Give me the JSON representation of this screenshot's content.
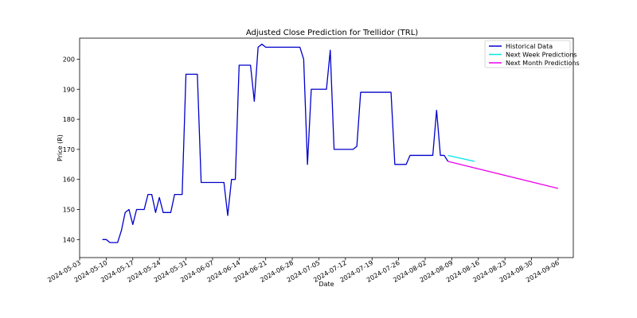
{
  "chart_data": {
    "type": "line",
    "title": "Adjusted Close Prediction for Trellidor (TRL)",
    "xlabel": "Date",
    "ylabel": "Price (R)",
    "xlim": [
      "2024-05-03",
      "2024-09-10"
    ],
    "ylim": [
      134,
      207
    ],
    "x_ticks": [
      "2024-05-03",
      "2024-05-10",
      "2024-05-17",
      "2024-05-24",
      "2024-05-31",
      "2024-06-07",
      "2024-06-14",
      "2024-06-21",
      "2024-06-28",
      "2024-07-05",
      "2024-07-12",
      "2024-07-19",
      "2024-07-26",
      "2024-08-02",
      "2024-08-09",
      "2024-08-16",
      "2024-08-23",
      "2024-08-30",
      "2024-09-06"
    ],
    "y_ticks": [
      140,
      150,
      160,
      170,
      180,
      190,
      200
    ],
    "grid": false,
    "legend": "top-right",
    "series": [
      {
        "name": "Historical Data",
        "color": "#0000cc",
        "points": [
          [
            "2024-05-09",
            140
          ],
          [
            "2024-05-10",
            140
          ],
          [
            "2024-05-11",
            139
          ],
          [
            "2024-05-12",
            139
          ],
          [
            "2024-05-13",
            139
          ],
          [
            "2024-05-14",
            143
          ],
          [
            "2024-05-15",
            149
          ],
          [
            "2024-05-16",
            150
          ],
          [
            "2024-05-17",
            145
          ],
          [
            "2024-05-18",
            150
          ],
          [
            "2024-05-19",
            150
          ],
          [
            "2024-05-20",
            150
          ],
          [
            "2024-05-21",
            155
          ],
          [
            "2024-05-22",
            155
          ],
          [
            "2024-05-23",
            149
          ],
          [
            "2024-05-24",
            154
          ],
          [
            "2024-05-25",
            149
          ],
          [
            "2024-05-26",
            149
          ],
          [
            "2024-05-27",
            149
          ],
          [
            "2024-05-28",
            155
          ],
          [
            "2024-05-29",
            155
          ],
          [
            "2024-05-30",
            155
          ],
          [
            "2024-05-31",
            195
          ],
          [
            "2024-06-01",
            195
          ],
          [
            "2024-06-02",
            195
          ],
          [
            "2024-06-03",
            195
          ],
          [
            "2024-06-04",
            159
          ],
          [
            "2024-06-05",
            159
          ],
          [
            "2024-06-06",
            159
          ],
          [
            "2024-06-07",
            159
          ],
          [
            "2024-06-08",
            159
          ],
          [
            "2024-06-09",
            159
          ],
          [
            "2024-06-10",
            159
          ],
          [
            "2024-06-11",
            148
          ],
          [
            "2024-06-12",
            160
          ],
          [
            "2024-06-13",
            160
          ],
          [
            "2024-06-14",
            198
          ],
          [
            "2024-06-15",
            198
          ],
          [
            "2024-06-16",
            198
          ],
          [
            "2024-06-17",
            198
          ],
          [
            "2024-06-18",
            186
          ],
          [
            "2024-06-19",
            204
          ],
          [
            "2024-06-20",
            205
          ],
          [
            "2024-06-21",
            204
          ],
          [
            "2024-06-22",
            204
          ],
          [
            "2024-06-23",
            204
          ],
          [
            "2024-06-24",
            204
          ],
          [
            "2024-06-25",
            204
          ],
          [
            "2024-06-26",
            204
          ],
          [
            "2024-06-27",
            204
          ],
          [
            "2024-06-28",
            204
          ],
          [
            "2024-06-29",
            204
          ],
          [
            "2024-06-30",
            204
          ],
          [
            "2024-07-01",
            200
          ],
          [
            "2024-07-02",
            165
          ],
          [
            "2024-07-03",
            190
          ],
          [
            "2024-07-04",
            190
          ],
          [
            "2024-07-05",
            190
          ],
          [
            "2024-07-06",
            190
          ],
          [
            "2024-07-07",
            190
          ],
          [
            "2024-07-08",
            203
          ],
          [
            "2024-07-09",
            170
          ],
          [
            "2024-07-10",
            170
          ],
          [
            "2024-07-11",
            170
          ],
          [
            "2024-07-12",
            170
          ],
          [
            "2024-07-13",
            170
          ],
          [
            "2024-07-14",
            170
          ],
          [
            "2024-07-15",
            171
          ],
          [
            "2024-07-16",
            189
          ],
          [
            "2024-07-17",
            189
          ],
          [
            "2024-07-18",
            189
          ],
          [
            "2024-07-19",
            189
          ],
          [
            "2024-07-20",
            189
          ],
          [
            "2024-07-21",
            189
          ],
          [
            "2024-07-22",
            189
          ],
          [
            "2024-07-23",
            189
          ],
          [
            "2024-07-24",
            189
          ],
          [
            "2024-07-25",
            165
          ],
          [
            "2024-07-26",
            165
          ],
          [
            "2024-07-27",
            165
          ],
          [
            "2024-07-28",
            165
          ],
          [
            "2024-07-29",
            168
          ],
          [
            "2024-07-30",
            168
          ],
          [
            "2024-07-31",
            168
          ],
          [
            "2024-08-01",
            168
          ],
          [
            "2024-08-02",
            168
          ],
          [
            "2024-08-03",
            168
          ],
          [
            "2024-08-04",
            168
          ],
          [
            "2024-08-05",
            183
          ],
          [
            "2024-08-06",
            168
          ],
          [
            "2024-08-07",
            168
          ],
          [
            "2024-08-08",
            166
          ]
        ]
      },
      {
        "name": "Next Week Predictions",
        "color": "#00e5e5",
        "points": [
          [
            "2024-08-08",
            168
          ],
          [
            "2024-08-15",
            166
          ]
        ]
      },
      {
        "name": "Next Month Predictions",
        "color": "#ee00ee",
        "points": [
          [
            "2024-08-08",
            166
          ],
          [
            "2024-09-06",
            157
          ]
        ]
      }
    ]
  }
}
